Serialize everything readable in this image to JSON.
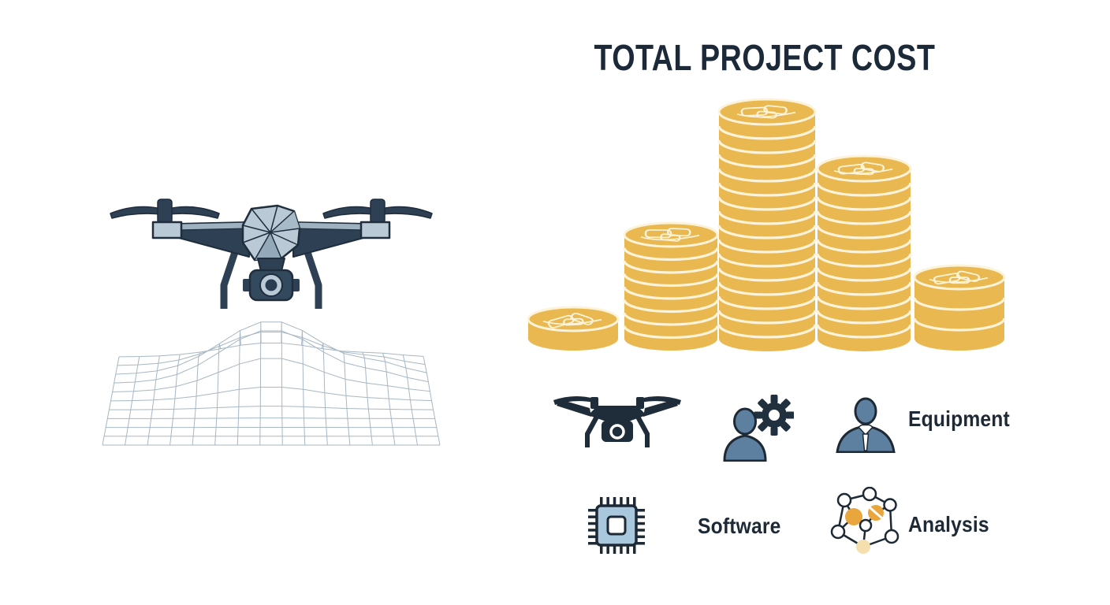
{
  "title": "TOTAL PROJECT COST",
  "chart_data": {
    "type": "bar",
    "representation": "coin_stacks",
    "title": "TOTAL PROJECT COST",
    "categories": [
      "coin-stack-1",
      "coin-stack-2",
      "coin-stack-3",
      "coin-stack-4",
      "coin-stack-5"
    ],
    "values": [
      1,
      8,
      16,
      12,
      3
    ],
    "unit": "coins",
    "ylim": [
      0,
      16
    ],
    "grid": false,
    "bar_color": "#e9b851"
  },
  "legend": {
    "items": [
      {
        "icon": "drone-icon",
        "label": ""
      },
      {
        "icon": "person-gear-icon",
        "label": ""
      },
      {
        "icon": "businessperson-icon",
        "label": "Equipment"
      },
      {
        "icon": "chip-icon",
        "label": "Software"
      },
      {
        "icon": "network-icon",
        "label": "Analysis"
      }
    ]
  },
  "illustration": {
    "name": "drone-over-terrain-wireframe",
    "elements": [
      "quadcopter-drone",
      "terrain-wireframe-mesh"
    ]
  },
  "colors": {
    "ink": "#1d2935",
    "drone_dark": "#2e4154",
    "drone_outline": "#1f2d3c",
    "drone_light": "#b9c9d6",
    "drone_mid": "#9db1c0",
    "coin_gold": "#e9b851",
    "coin_line": "#fcf3d8",
    "person_blue": "#5d80a0",
    "chip_blue": "#a9c8de",
    "network_orange": "#e9a63c",
    "network_pale": "#f6dfae",
    "mesh_line": "#a3b4c0"
  }
}
